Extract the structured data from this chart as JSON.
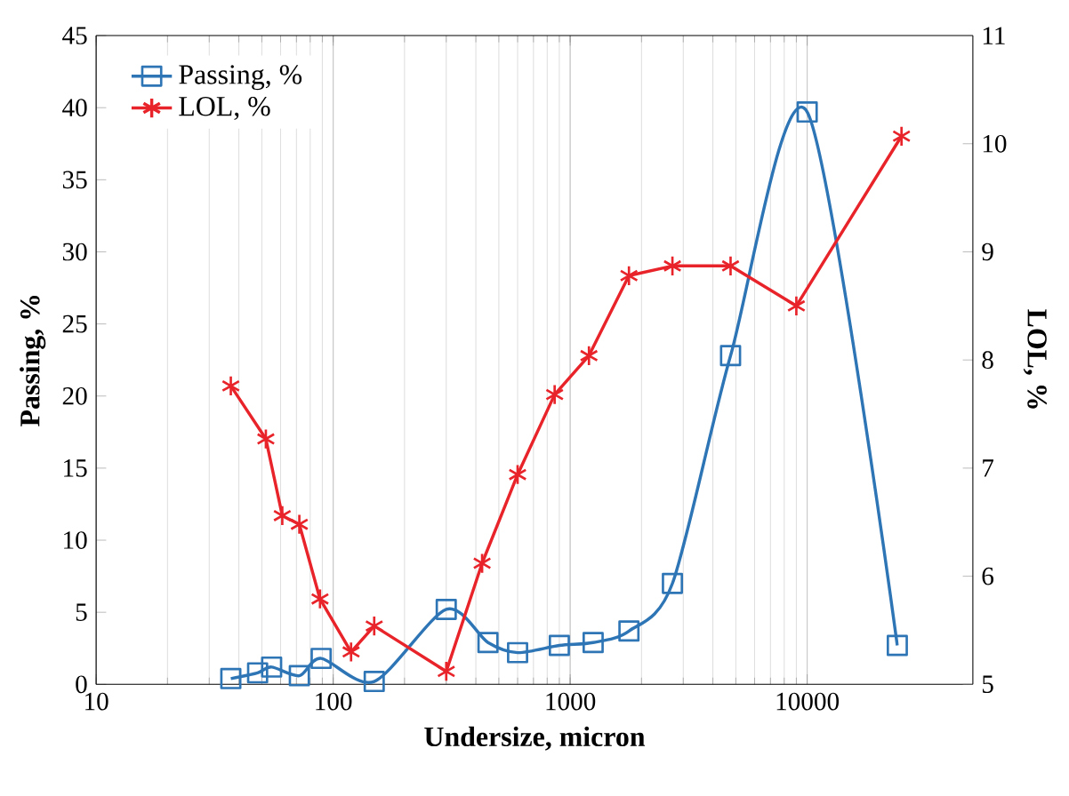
{
  "chart_data": {
    "type": "line",
    "xlabel": "Undersize, micron",
    "ylabel": "Passing, %",
    "y2label": "LOL, %",
    "log": "x",
    "grid": "x",
    "legend": "top left",
    "xlim": [
      10,
      50000
    ],
    "xticks": [
      10,
      100,
      1000,
      10000
    ],
    "ylim": [
      0,
      45
    ],
    "yticks": [
      0,
      5,
      10,
      15,
      20,
      25,
      30,
      35,
      40,
      45
    ],
    "y2lim": [
      5,
      11
    ],
    "y2ticks": [
      5,
      6,
      7,
      8,
      9,
      10,
      11
    ],
    "series": [
      {
        "name": "Passing, %",
        "color": "#2e75b6",
        "marker": "square",
        "axis": "y",
        "x": [
          37,
          48,
          55,
          72,
          89,
          149,
          300,
          450,
          600,
          900,
          1250,
          1770,
          2700,
          4750,
          10000,
          24000
        ],
        "values": [
          0.4,
          0.8,
          1.2,
          0.6,
          1.8,
          0.2,
          5.2,
          2.9,
          2.2,
          2.7,
          2.9,
          3.7,
          7.0,
          22.8,
          39.7,
          2.7
        ]
      },
      {
        "name": "LOL, %",
        "color": "#e8242a",
        "marker": "cross",
        "axis": "y2",
        "x": [
          37,
          52,
          61,
          72,
          88,
          119,
          149,
          300,
          425,
          600,
          860,
          1200,
          1770,
          2700,
          4750,
          9000,
          25000
        ],
        "values": [
          7.76,
          7.27,
          6.56,
          6.48,
          5.79,
          5.3,
          5.54,
          5.12,
          6.12,
          6.94,
          7.68,
          8.04,
          8.78,
          8.87,
          8.87,
          8.5,
          10.07
        ]
      }
    ]
  }
}
